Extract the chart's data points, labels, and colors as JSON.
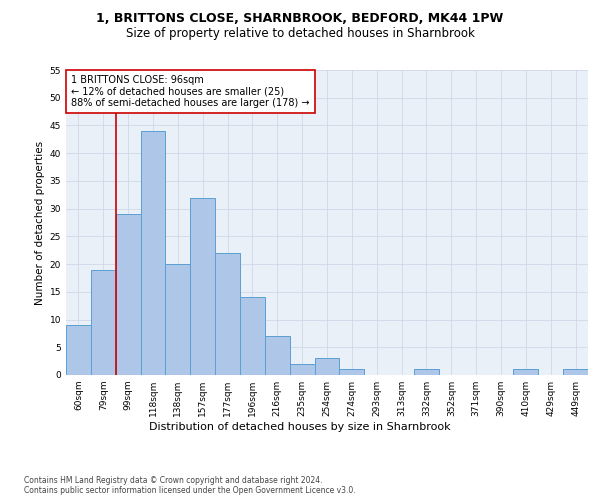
{
  "title": "1, BRITTONS CLOSE, SHARNBROOK, BEDFORD, MK44 1PW",
  "subtitle": "Size of property relative to detached houses in Sharnbrook",
  "xlabel": "Distribution of detached houses by size in Sharnbrook",
  "ylabel": "Number of detached properties",
  "categories": [
    "60sqm",
    "79sqm",
    "99sqm",
    "118sqm",
    "138sqm",
    "157sqm",
    "177sqm",
    "196sqm",
    "216sqm",
    "235sqm",
    "254sqm",
    "274sqm",
    "293sqm",
    "313sqm",
    "332sqm",
    "352sqm",
    "371sqm",
    "390sqm",
    "410sqm",
    "429sqm",
    "449sqm"
  ],
  "values": [
    9,
    19,
    29,
    44,
    20,
    32,
    22,
    14,
    7,
    2,
    3,
    1,
    0,
    0,
    1,
    0,
    0,
    0,
    1,
    0,
    1
  ],
  "bar_color": "#aec6e8",
  "bar_edge_color": "#5a9fd4",
  "vline_color": "#cc0000",
  "vline_pos": 1.5,
  "annotation_text": "1 BRITTONS CLOSE: 96sqm\n← 12% of detached houses are smaller (25)\n88% of semi-detached houses are larger (178) →",
  "annotation_box_color": "#ffffff",
  "annotation_box_edge": "#cc0000",
  "ylim": [
    0,
    55
  ],
  "yticks": [
    0,
    5,
    10,
    15,
    20,
    25,
    30,
    35,
    40,
    45,
    50,
    55
  ],
  "grid_color": "#d0d8e8",
  "background_color": "#eaf0f8",
  "footer": "Contains HM Land Registry data © Crown copyright and database right 2024.\nContains public sector information licensed under the Open Government Licence v3.0.",
  "title_fontsize": 9,
  "subtitle_fontsize": 8.5,
  "xlabel_fontsize": 8,
  "ylabel_fontsize": 7.5,
  "tick_fontsize": 6.5,
  "annotation_fontsize": 7,
  "footer_fontsize": 5.5
}
